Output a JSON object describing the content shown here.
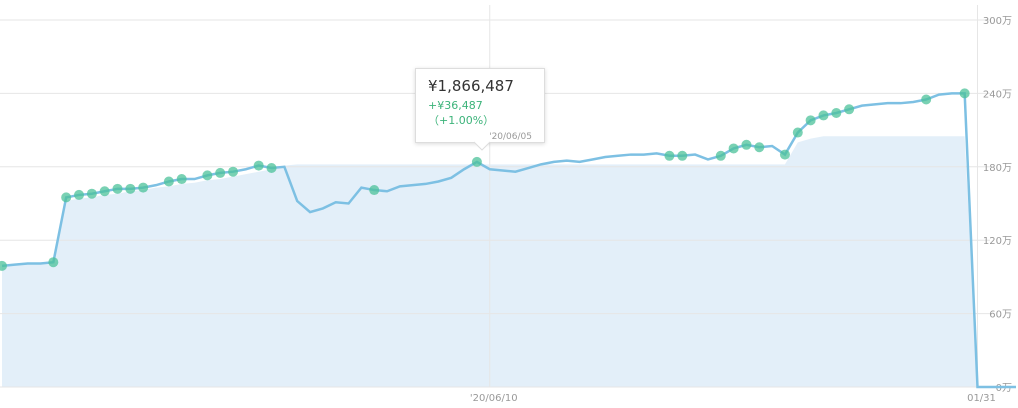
{
  "chart_data": {
    "type": "line",
    "categories": [
      null,
      null,
      null,
      null,
      null,
      null,
      null,
      null,
      null,
      null,
      null,
      null,
      null,
      null,
      null,
      null,
      null,
      null,
      null,
      null,
      null,
      null,
      null,
      null,
      null,
      null,
      null,
      null,
      null,
      null,
      null,
      null,
      null,
      null,
      null,
      null,
      null,
      null,
      "'20/06/10",
      null,
      null,
      null,
      null,
      null,
      null,
      null,
      null,
      null,
      null,
      null,
      null,
      null,
      null,
      null,
      null,
      null,
      null,
      null,
      null,
      null,
      null,
      null,
      null,
      null,
      null,
      null,
      null,
      null,
      null,
      null,
      null,
      null,
      null,
      null,
      null,
      null,
      "01/31",
      null,
      null,
      null
    ],
    "series": [
      {
        "color": "#e3eff9",
        "fill": true,
        "values": [
          99,
          100,
          101,
          101,
          102,
          152,
          154,
          155,
          157,
          158,
          160,
          161,
          163,
          164,
          166,
          167,
          169,
          170,
          172,
          174,
          176,
          178,
          181,
          182,
          182,
          182,
          182,
          182,
          182,
          182,
          182,
          182,
          182,
          182,
          182,
          182,
          182,
          182,
          182,
          182,
          182,
          182,
          182,
          182,
          182,
          182,
          182,
          182,
          182,
          182,
          182,
          182,
          182,
          182,
          182,
          182,
          182,
          182,
          182,
          182,
          182,
          182,
          200,
          203,
          205,
          205,
          205,
          205,
          205,
          205,
          205,
          205,
          205,
          205,
          205,
          205,
          0,
          0,
          0,
          0
        ]
      },
      {
        "color": "#7dc0e3",
        "values": [
          99,
          100,
          101,
          101,
          102,
          155,
          157,
          158,
          160,
          162,
          162,
          163,
          165,
          168,
          170,
          170,
          173,
          175,
          176,
          178,
          181,
          179,
          180,
          152,
          143,
          146,
          151,
          150,
          163,
          161,
          160,
          164,
          165,
          166,
          168,
          171,
          178,
          184,
          178,
          177,
          176,
          179,
          182,
          184,
          185,
          184,
          186,
          188,
          189,
          190,
          190,
          191,
          189,
          189,
          190,
          186,
          189,
          195,
          198,
          196,
          197,
          190,
          208,
          218,
          222,
          224,
          227,
          230,
          231,
          232,
          232,
          233,
          235,
          239,
          240,
          240,
          0,
          0,
          0,
          0
        ]
      },
      {
        "color": "#4cc29a",
        "markers": true,
        "values": [
          99,
          null,
          null,
          null,
          102,
          155,
          157,
          158,
          160,
          162,
          162,
          163,
          null,
          168,
          170,
          null,
          173,
          175,
          176,
          null,
          181,
          179,
          null,
          null,
          null,
          null,
          null,
          null,
          null,
          161,
          null,
          null,
          null,
          null,
          null,
          null,
          null,
          184,
          null,
          null,
          null,
          null,
          null,
          null,
          null,
          null,
          null,
          null,
          null,
          null,
          null,
          null,
          189,
          189,
          null,
          null,
          189,
          195,
          198,
          196,
          null,
          190,
          208,
          218,
          222,
          224,
          227,
          null,
          null,
          null,
          null,
          null,
          235,
          null,
          null,
          240,
          null,
          null,
          null,
          null
        ]
      }
    ],
    "ylim": [
      0,
      300
    ],
    "yticks": [
      {
        "value": 0,
        "label": "0万"
      },
      {
        "value": 60,
        "label": "60万"
      },
      {
        "value": 120,
        "label": "120万"
      },
      {
        "value": 180,
        "label": "180万"
      },
      {
        "value": 240,
        "label": "240万"
      },
      {
        "value": 300,
        "label": "300万"
      }
    ],
    "grid": true,
    "tooltip": {
      "value": "¥1,866,487",
      "change": "+¥36,487（+1.00%）",
      "date": "'20/06/05"
    }
  }
}
